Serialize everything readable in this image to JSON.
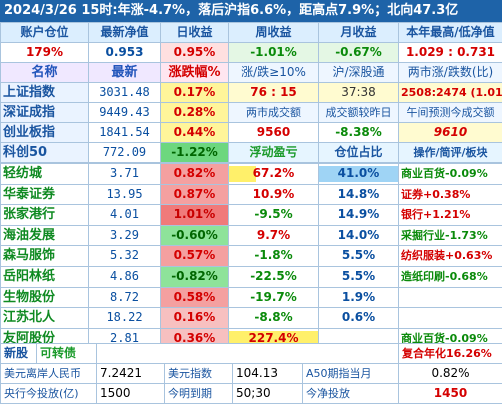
{
  "header": {
    "text": "2024/3/26 15时:年涨-4.7%，落后沪指6.6%，距高点7.9%；北向47.3亿"
  },
  "account": {
    "labels": [
      "账户仓位",
      "最新净值",
      "日收益",
      "周收益",
      "月收益",
      "本年最高/低净值"
    ],
    "values": [
      "179%",
      "0.953",
      "0.95%",
      "-1.01%",
      "-0.67%",
      "1.029 : 0.731"
    ]
  },
  "indices": {
    "headers": [
      "名称",
      "最新",
      "涨跌幅%",
      "涨/跌≥10%",
      "沪/深股通",
      "两市涨/跌数(比)"
    ],
    "rows": [
      {
        "name": "上证指数",
        "price": "3031.48",
        "pct": "0.17%",
        "c4": "76 : 15",
        "c5": "37:38",
        "c6": "2508:2474 (1.01)"
      },
      {
        "name": "深证成指",
        "price": "9449.43",
        "pct": "0.28%",
        "c4": "两市成交额",
        "c5": "成交额较昨日",
        "c6": "午间预测今成交额"
      },
      {
        "name": "创业板指",
        "price": "1841.54",
        "pct": "0.44%",
        "c4": "9560",
        "c5": "-8.38%",
        "c6": "9610"
      },
      {
        "name": "科创50",
        "price": "772.09",
        "pct": "-1.22%",
        "c4": "浮动盈亏",
        "c5": "仓位占比",
        "c6": "操作/简评/板块"
      }
    ]
  },
  "stocks": [
    {
      "name": "轻纺城",
      "price": "3.71",
      "pct": "0.82%",
      "float": "67.2%",
      "float_level": 0.3,
      "pos": "41.0%",
      "pos_level": 1.0,
      "note": "商业百货-0.09%"
    },
    {
      "name": "华泰证券",
      "price": "13.95",
      "pct": "0.87%",
      "float": "10.9%",
      "float_level": 0.0,
      "pos": "14.8%",
      "pos_level": 0.0,
      "note": "证券+0.38%"
    },
    {
      "name": "张家港行",
      "price": "4.01",
      "pct": "1.01%",
      "float": "-9.5%",
      "float_level": 0.0,
      "pos": "14.9%",
      "pos_level": 0.0,
      "note": "银行+1.21%"
    },
    {
      "name": "海油发展",
      "price": "3.29",
      "pct": "-0.60%",
      "float": "9.7%",
      "float_level": 0.0,
      "pos": "14.0%",
      "pos_level": 0.0,
      "note": "采掘行业-1.73%"
    },
    {
      "name": "森马服饰",
      "price": "5.32",
      "pct": "0.57%",
      "float": "-1.8%",
      "float_level": 0.0,
      "pos": "5.5%",
      "pos_level": 0.0,
      "note": "纺织服装+0.63%"
    },
    {
      "name": "岳阳林纸",
      "price": "4.86",
      "pct": "-0.82%",
      "float": "-22.5%",
      "float_level": 0.0,
      "pos": "5.5%",
      "pos_level": 0.0,
      "note": "造纸印刷-0.68%"
    },
    {
      "name": "生物股份",
      "price": "8.72",
      "pct": "0.58%",
      "float": "-19.7%",
      "float_level": 0.0,
      "pos": "1.9%",
      "pos_level": 0.0,
      "note": ""
    },
    {
      "name": "江苏北人",
      "price": "18.22",
      "pct": "0.16%",
      "float": "-8.8%",
      "float_level": 0.0,
      "pos": "0.6%",
      "pos_level": 0.0,
      "note": ""
    },
    {
      "name": "友阿股份",
      "price": "2.81",
      "pct": "0.36%",
      "float": "227.4%",
      "float_level": 1.0,
      "pos": "",
      "pos_level": 0.0,
      "note": "商业百货-0.09%"
    }
  ],
  "newstock": {
    "label": "新股",
    "sub": "可转债",
    "note": "复合年化16.26%"
  },
  "footer": {
    "r1": [
      "美元离岸人民币",
      "7.2421",
      "美元指数",
      "104.13",
      "A50期指当月",
      "0.82%"
    ],
    "r2": [
      "央行今投放(亿)",
      "1500",
      "今明到期",
      "50;30",
      "今净投放",
      "1450"
    ]
  },
  "colors": {
    "header": "#1e63a8",
    "up": "#d40000",
    "down": "#006600"
  }
}
